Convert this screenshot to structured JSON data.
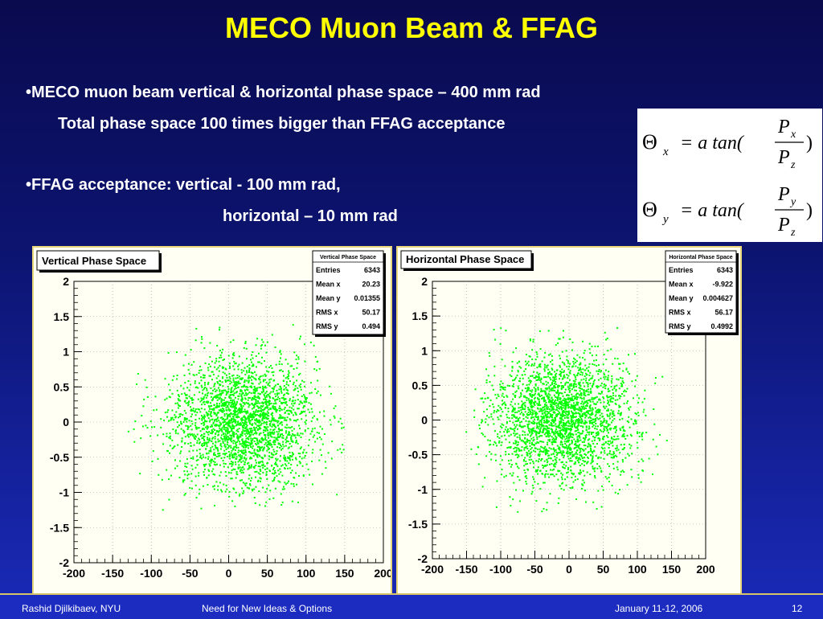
{
  "slide": {
    "title": "MECO Muon Beam & FFAG",
    "bullet1": "•MECO muon beam vertical & horizontal phase space – 400 mm rad",
    "bullet1_sub": "Total phase space 100 times bigger than FFAG acceptance",
    "bullet2": "•FFAG acceptance: vertical -  100 mm rad,",
    "bullet2_sub": "horizontal – 10 mm rad"
  },
  "formulas": {
    "f1": {
      "lhs": "Θ",
      "lhs_sub": "x",
      "mid": "= a tan(",
      "num": "P",
      "num_sub": "x",
      "den": "P",
      "den_sub": "z",
      "close": ")"
    },
    "f2": {
      "lhs": "Θ",
      "lhs_sub": "y",
      "mid": "= a tan(",
      "num": "P",
      "num_sub": "y",
      "den": "P",
      "den_sub": "z",
      "close": ")"
    }
  },
  "footer": {
    "author": "Rashid Djilkibaev, NYU",
    "talk": "Need for New Ideas & Options",
    "date": "January 11-12, 2006",
    "page": "12"
  },
  "colors": {
    "point": "#00ff00",
    "title_text": "#ffff00",
    "frame": "#e8d77a"
  },
  "chart_data": [
    {
      "type": "scatter",
      "title": "Vertical Phase Space",
      "xlim": [
        -200,
        200
      ],
      "ylim": [
        -2,
        2
      ],
      "xticks": [
        -200,
        -150,
        -100,
        -50,
        0,
        50,
        100,
        150,
        200
      ],
      "yticks": [
        -2,
        -1.5,
        -1,
        -0.5,
        0,
        0.5,
        1,
        1.5,
        2
      ],
      "grid": true,
      "stats": {
        "name": "Vertical Phase Space",
        "rows": [
          [
            "Entries",
            "6343"
          ],
          [
            "Mean x",
            "20.23"
          ],
          [
            "Mean y",
            "0.01355"
          ],
          [
            "RMS x",
            "50.17"
          ],
          [
            "RMS y",
            "0.494"
          ]
        ]
      },
      "distribution": {
        "entries": 6343,
        "mean_x": 20.23,
        "mean_y": 0.01355,
        "rms_x": 50.17,
        "rms_y": 0.494,
        "x_range": [
          -140,
          150
        ],
        "y_range": [
          -1.3,
          1.35
        ],
        "rendered_points": 2600
      }
    },
    {
      "type": "scatter",
      "title": "Horizontal Phase Space",
      "xlim": [
        -200,
        200
      ],
      "ylim": [
        -2,
        2
      ],
      "xticks": [
        -200,
        -150,
        -100,
        -50,
        0,
        50,
        100,
        150,
        200
      ],
      "yticks": [
        -2,
        -1.5,
        -1,
        -0.5,
        0,
        0.5,
        1,
        1.5,
        2
      ],
      "grid": true,
      "stats": {
        "name": "Horizontal Phase Space",
        "rows": [
          [
            "Entries",
            "6343"
          ],
          [
            "Mean x",
            "-9.922"
          ],
          [
            "Mean y",
            "0.004627"
          ],
          [
            "RMS x",
            "56.17"
          ],
          [
            "RMS y",
            "0.4992"
          ]
        ]
      },
      "distribution": {
        "entries": 6343,
        "mean_x": -9.922,
        "mean_y": 0.004627,
        "rms_x": 56.17,
        "rms_y": 0.4992,
        "x_range": [
          -145,
          145
        ],
        "y_range": [
          -1.35,
          1.35
        ],
        "rendered_points": 2600
      }
    }
  ]
}
